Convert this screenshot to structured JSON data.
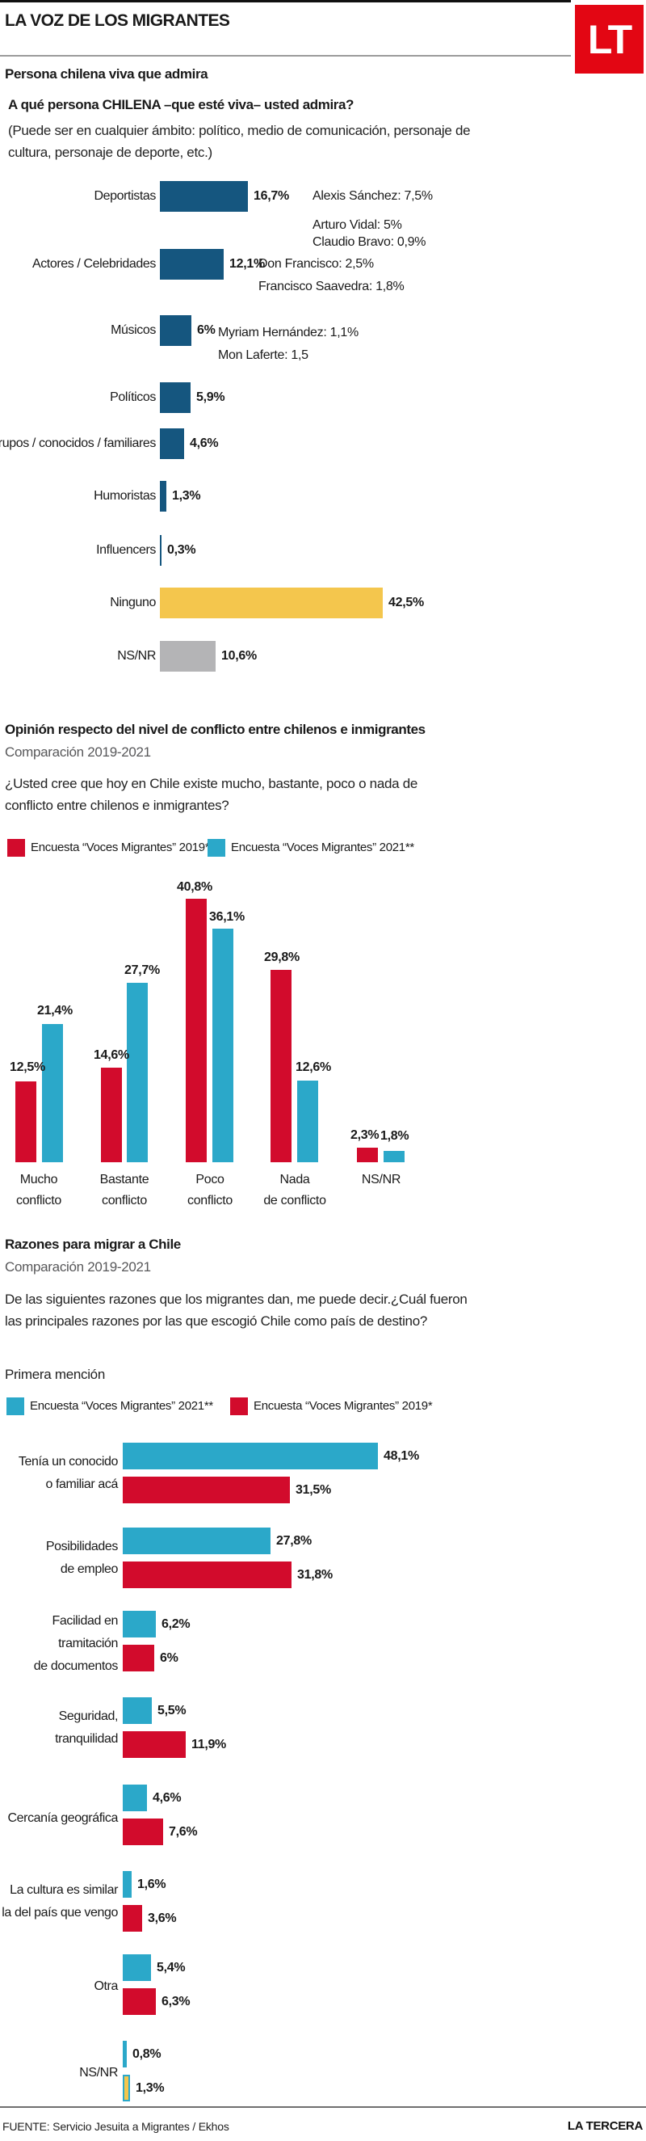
{
  "header": {
    "kicker": "LA VOZ DE LOS MIGRANTES",
    "logo_text": "LT"
  },
  "palette": {
    "dark_blue": "#15567F",
    "cyan": "#2BA8C9",
    "red": "#D20B2C",
    "yellow": "#F4C64D",
    "gray": "#B4B4B6",
    "logo_red": "#E30613"
  },
  "chart_data": [
    {
      "type": "bar",
      "orientation": "horizontal",
      "title": "Persona chilena viva que admira",
      "question": "A qué persona CHILENA –que esté viva– usted admira?",
      "note": "(Puede ser en cualquier ámbito: político, medio de comunicación, personaje de cultura, personaje de deporte, etc.)",
      "unit": "%",
      "rows": [
        {
          "label": "Deportistas",
          "value": 16.7,
          "display": "16,7%",
          "color": "dark_blue",
          "annotations": [
            "Alexis Sánchez: 7,5%",
            "Arturo Vidal: 5%",
            "Claudio Bravo: 0,9%"
          ]
        },
        {
          "label": "Actores / Celebridades",
          "value": 12.1,
          "display": "12,1%",
          "color": "dark_blue",
          "annotations": [
            "Don Francisco: 2,5%",
            "Francisco Saavedra: 1,8%"
          ]
        },
        {
          "label": "Músicos",
          "value": 6,
          "display": "6%",
          "color": "dark_blue",
          "annotations": [
            "Myriam Hernández: 1,1%",
            "Mon Laferte: 1,5"
          ]
        },
        {
          "label": "Políticos",
          "value": 5.9,
          "display": "5,9%",
          "color": "dark_blue",
          "annotations": []
        },
        {
          "label": "Grupos / conocidos / familiares",
          "value": 4.6,
          "display": "4,6%",
          "color": "dark_blue",
          "annotations": []
        },
        {
          "label": "Humoristas",
          "value": 1.3,
          "display": "1,3%",
          "color": "dark_blue",
          "annotations": []
        },
        {
          "label": "Influencers",
          "value": 0.3,
          "display": "0,3%",
          "color": "dark_blue",
          "annotations": []
        },
        {
          "label": "Ninguno",
          "value": 42.5,
          "display": "42,5%",
          "color": "yellow",
          "annotations": []
        },
        {
          "label": "NS/NR",
          "value": 10.6,
          "display": "10,6%",
          "color": "gray",
          "annotations": []
        }
      ]
    },
    {
      "type": "bar",
      "orientation": "vertical",
      "title": "Opinión respecto del nivel de conflicto entre chilenos e inmigrantes",
      "subtitle": "Comparación 2019-2021",
      "question": "¿Usted cree que hoy en Chile existe mucho, bastante, poco o nada de conflicto entre chilenos e inmigrantes?",
      "legend": [
        {
          "label": "Encuesta “Voces Migrantes” 2019*",
          "color": "red"
        },
        {
          "label": "Encuesta “Voces Migrantes” 2021**",
          "color": "cyan"
        }
      ],
      "categories": [
        [
          "Mucho",
          "conflicto"
        ],
        [
          "Bastante",
          "conflicto"
        ],
        [
          "Poco",
          "conflicto"
        ],
        [
          "Nada",
          "de conflicto"
        ],
        [
          "NS/NR"
        ]
      ],
      "series": [
        {
          "name": "Encuesta “Voces Migrantes” 2019*",
          "color": "red",
          "values": [
            12.5,
            14.6,
            40.8,
            29.8,
            2.3
          ],
          "displays": [
            "12,5%",
            "14,6%",
            "40,8%",
            "29,8%",
            "2,3%"
          ]
        },
        {
          "name": "Encuesta “Voces Migrantes” 2021**",
          "color": "cyan",
          "values": [
            21.4,
            27.7,
            36.1,
            12.6,
            1.8
          ],
          "displays": [
            "21,4%",
            "27,7%",
            "36,1%",
            "12,6%",
            "1,8%"
          ]
        }
      ]
    },
    {
      "type": "bar",
      "orientation": "horizontal",
      "grouped": true,
      "title": "Razones para migrar a Chile",
      "subtitle": "Comparación 2019-2021",
      "question": "De las siguientes razones que los migrantes dan, me puede decir.¿Cuál fueron las principales razones por las que escogió Chile como país de destino?",
      "mention_label": "Primera mención",
      "legend": [
        {
          "label": "Encuesta “Voces Migrantes” 2021**",
          "color": "cyan"
        },
        {
          "label": "Encuesta “Voces Migrantes” 2019*",
          "color": "red"
        }
      ],
      "rows": [
        {
          "label_lines": [
            "Tenía un conocido",
            "o familiar acá"
          ],
          "v2021": 48.1,
          "d2021": "48,1%",
          "c2021": "cyan",
          "v2019": 31.5,
          "d2019": "31,5%",
          "c2019": "red"
        },
        {
          "label_lines": [
            "Posibilidades",
            "de empleo"
          ],
          "v2021": 27.8,
          "d2021": "27,8%",
          "c2021": "cyan",
          "v2019": 31.8,
          "d2019": "31,8%",
          "c2019": "red"
        },
        {
          "label_lines": [
            "Facilidad en",
            "tramitación",
            "de documentos"
          ],
          "v2021": 6.2,
          "d2021": "6,2%",
          "c2021": "cyan",
          "v2019": 6,
          "d2019": "6%",
          "c2019": "red"
        },
        {
          "label_lines": [
            "Seguridad,",
            "tranquilidad"
          ],
          "v2021": 5.5,
          "d2021": "5,5%",
          "c2021": "cyan",
          "v2019": 11.9,
          "d2019": "11,9%",
          "c2019": "red"
        },
        {
          "label_lines": [
            "Cercanía geográfica"
          ],
          "v2021": 4.6,
          "d2021": "4,6%",
          "c2021": "cyan",
          "v2019": 7.6,
          "d2019": "7,6%",
          "c2019": "red"
        },
        {
          "label_lines": [
            "La cultura es similar",
            "a la del país que vengo"
          ],
          "v2021": 1.6,
          "d2021": "1,6%",
          "c2021": "cyan",
          "v2019": 3.6,
          "d2019": "3,6%",
          "c2019": "red"
        },
        {
          "label_lines": [
            "Otra"
          ],
          "v2021": 5.4,
          "d2021": "5,4%",
          "c2021": "cyan",
          "v2019": 6.3,
          "d2019": "6,3%",
          "c2019": "red"
        },
        {
          "label_lines": [
            "NS/NR"
          ],
          "v2021": 0.8,
          "d2021": "0,8%",
          "c2021": "cyan",
          "v2019": 1.3,
          "d2019": "1,3%",
          "c2019": "yellow_outline"
        }
      ]
    }
  ],
  "footer": {
    "source": "FUENTE: Servicio Jesuita a Migrantes / Ekhos",
    "brand": "LA TERCERA"
  }
}
